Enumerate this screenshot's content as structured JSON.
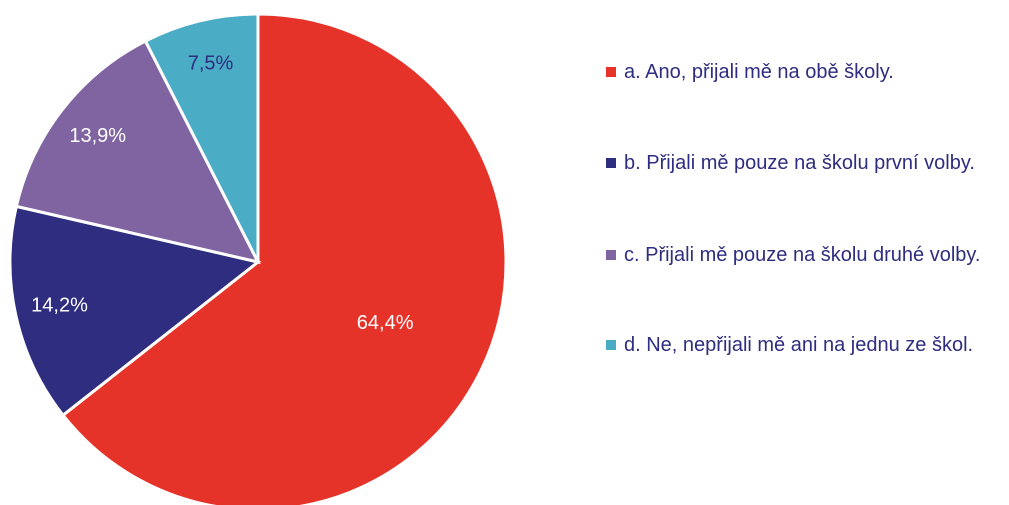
{
  "chart_data": {
    "type": "pie",
    "categories": [
      "a. Ano, přijali mě na obě školy.",
      "b. Přijali mě pouze na školu první volby.",
      "c. Přijali mě pouze na školu druhé volby.",
      "d. Ne, nepřijali mě ani na jednu ze škol."
    ],
    "values": [
      64.4,
      14.2,
      13.9,
      7.5
    ],
    "value_labels": [
      "64,4%",
      "14,2%",
      "13,9%",
      "7,5%"
    ],
    "colors": [
      "#e5332a",
      "#2e2d7f",
      "#8064a2",
      "#4bacc6"
    ],
    "legend": "right"
  }
}
